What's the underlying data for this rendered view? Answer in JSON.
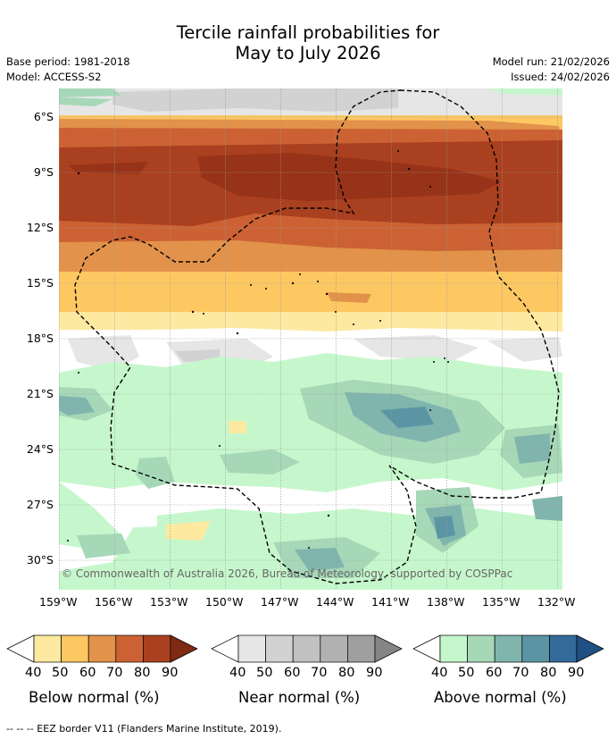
{
  "header": {
    "title_line1": "Tercile rainfall probabilities for",
    "title_line2": "May to July 2026",
    "base_period": "Base period: 1981-2018",
    "model": "Model: ACCESS-S2",
    "model_run": "Model run: 21/02/2026",
    "issued": "Issued: 24/02/2026"
  },
  "map": {
    "lat_labels": [
      "6°S",
      "9°S",
      "12°S",
      "15°S",
      "18°S",
      "21°S",
      "24°S",
      "27°S",
      "30°S"
    ],
    "lon_labels": [
      "159°W",
      "156°W",
      "153°W",
      "150°W",
      "147°W",
      "144°W",
      "141°W",
      "138°W",
      "135°W",
      "132°W"
    ],
    "copyright": "© Commonwealth of Australia 2026, Bureau of Meteorology, supported by COSPPac"
  },
  "legend": {
    "below": {
      "label": "Below normal (%)",
      "ticks": [
        "40",
        "50",
        "60",
        "70",
        "80",
        "90"
      ],
      "colors": [
        "#ffffff",
        "#fde9a0",
        "#fdc862",
        "#e2924a",
        "#cc6233",
        "#a9401f",
        "#7f2a15"
      ]
    },
    "near": {
      "label": "Near normal (%)",
      "ticks": [
        "40",
        "50",
        "60",
        "70",
        "80",
        "90"
      ],
      "colors": [
        "#ffffff",
        "#e6e6e6",
        "#d2d2d2",
        "#c1c1c1",
        "#b1b1b1",
        "#9f9f9f",
        "#858585"
      ]
    },
    "above": {
      "label": "Above normal (%)",
      "ticks": [
        "40",
        "50",
        "60",
        "70",
        "80",
        "90"
      ],
      "colors": [
        "#ffffff",
        "#c6f7cc",
        "#a6d8b8",
        "#80b5ad",
        "#5b95a4",
        "#346a9a",
        "#1f5082"
      ]
    }
  },
  "footnote": "-- -- -- EEZ border V11 (Flanders Marine Institute, 2019)."
}
